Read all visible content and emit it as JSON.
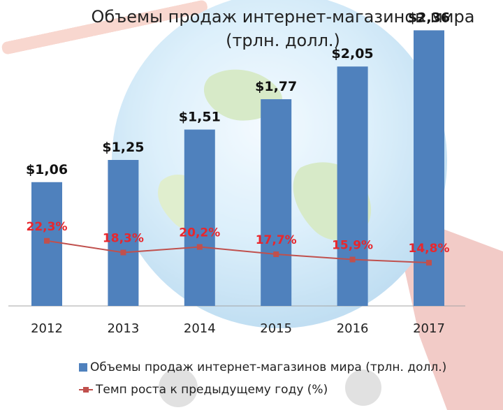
{
  "chart_data": {
    "type": "bar",
    "title": "Объемы продаж интернет-магазинов мира",
    "subtitle": "(трлн. долл.)",
    "categories": [
      "2012",
      "2013",
      "2014",
      "2015",
      "2016",
      "2017"
    ],
    "series": [
      {
        "name": "Объемы продаж интернет-магазинов мира (трлн. долл.)",
        "type": "bar",
        "values": [
          1.06,
          1.25,
          1.51,
          1.77,
          2.05,
          2.36
        ],
        "labels": [
          "$1,06",
          "$1,25",
          "$1,51",
          "$1,77",
          "$2,05",
          "$2,36"
        ]
      },
      {
        "name": "Темп роста к предыдущему году (%)",
        "type": "line",
        "values": [
          22.3,
          18.3,
          20.2,
          17.7,
          15.9,
          14.8
        ],
        "labels": [
          "22,3%",
          "18,3%",
          "20,2%",
          "17,7%",
          "15,9%",
          "14,8%"
        ]
      }
    ],
    "ylim": [
      0,
      2.5
    ],
    "grid": false,
    "legend_position": "bottom",
    "colors": {
      "bar": "#4f81bd",
      "line": "#c0504d",
      "line_label": "#e8272d"
    }
  }
}
